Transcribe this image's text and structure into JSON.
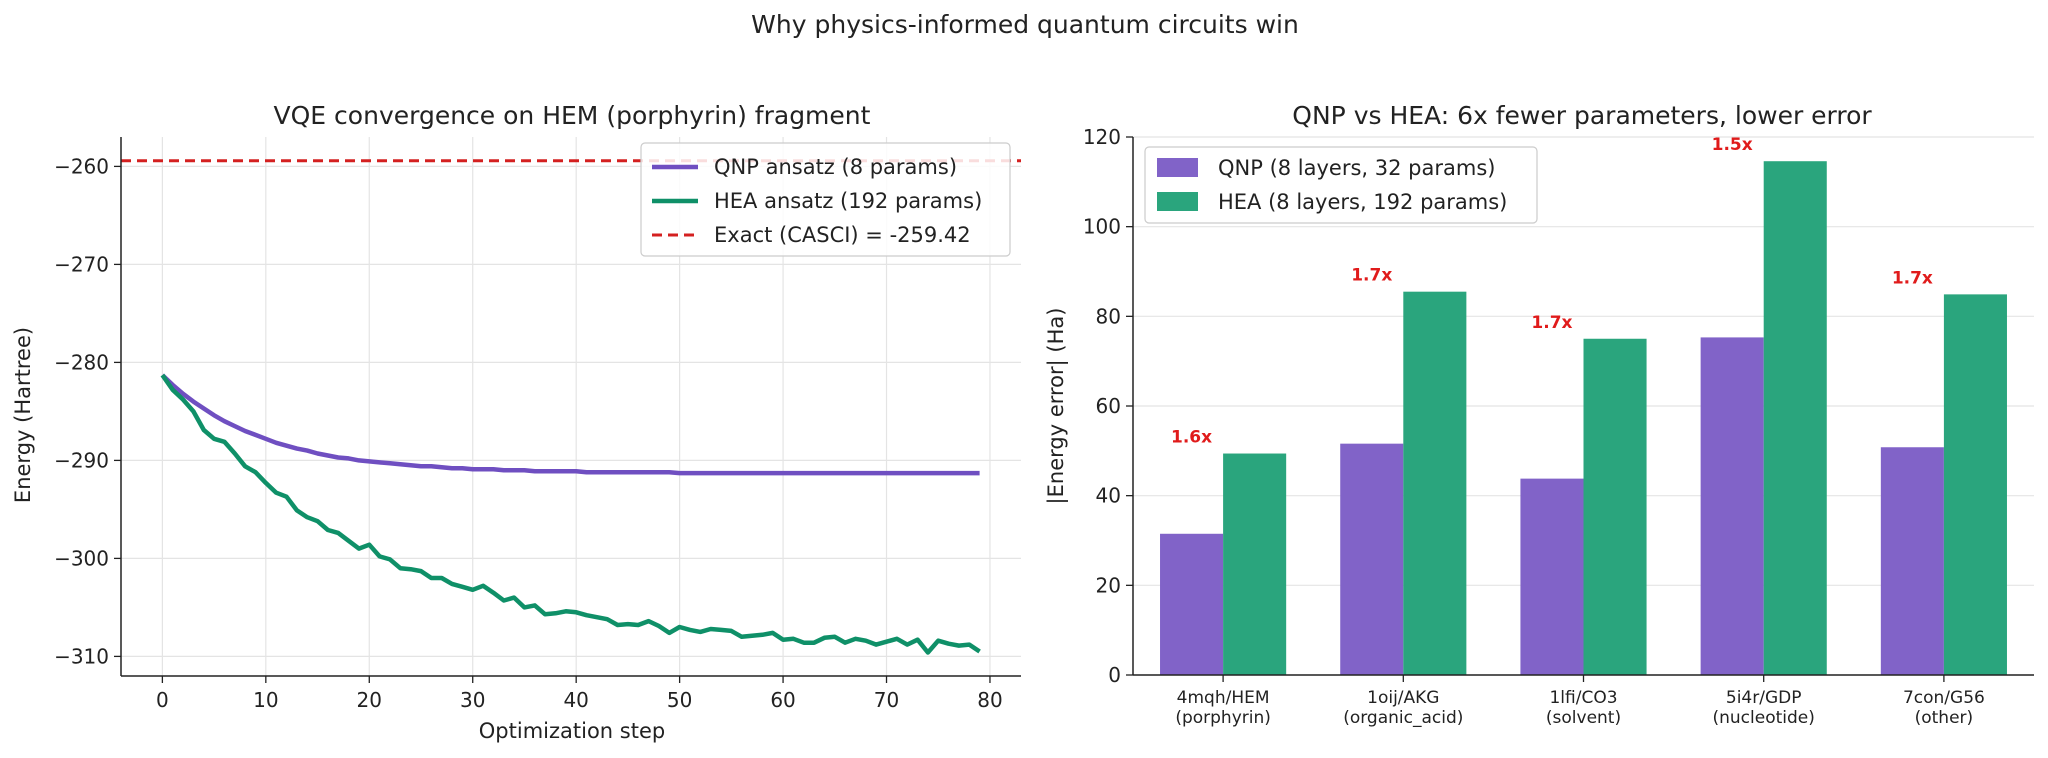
{
  "suptitle": "Why physics-informed quantum circuits win",
  "colors": {
    "qnp": "#6f4fc1",
    "hea": "#0f9068",
    "exact": "#d42020",
    "bar_qnp": "#8163c8",
    "bar_hea": "#2aa57d",
    "ratio": "#e01b1b"
  },
  "chart_data": [
    {
      "type": "line",
      "title": "VQE convergence on HEM (porphyrin) fragment",
      "xlabel": "Optimization step",
      "ylabel": "Energy (Hartree)",
      "xlim": [
        -4,
        83
      ],
      "ylim": [
        -312,
        -257
      ],
      "xticks": [
        0,
        10,
        20,
        30,
        40,
        50,
        60,
        70,
        80
      ],
      "yticks": [
        -310,
        -300,
        -290,
        -280,
        -270,
        -260
      ],
      "tick_labels": {
        "x": [
          "0",
          "10",
          "20",
          "30",
          "40",
          "50",
          "60",
          "70",
          "80"
        ],
        "y": [
          "−310",
          "−300",
          "−290",
          "−280",
          "−270",
          "−260"
        ]
      },
      "grid": true,
      "legend_position": "top-right",
      "series": [
        {
          "name": "QNP ansatz (8 params)",
          "x": [
            0,
            1,
            2,
            3,
            4,
            5,
            6,
            7,
            8,
            9,
            10,
            11,
            12,
            13,
            14,
            15,
            16,
            17,
            18,
            19,
            20,
            21,
            22,
            23,
            24,
            25,
            26,
            27,
            28,
            29,
            30,
            31,
            32,
            33,
            34,
            35,
            36,
            37,
            38,
            39,
            40,
            41,
            42,
            43,
            44,
            45,
            46,
            47,
            48,
            49,
            50,
            51,
            52,
            53,
            54,
            55,
            56,
            57,
            58,
            59,
            60,
            61,
            62,
            63,
            64,
            65,
            66,
            67,
            68,
            69,
            70,
            71,
            72,
            73,
            74,
            75,
            76,
            77,
            78,
            79
          ],
          "y": [
            -281.3,
            -282.3,
            -283.2,
            -284.0,
            -284.7,
            -285.4,
            -286.0,
            -286.5,
            -287.0,
            -287.4,
            -287.8,
            -288.2,
            -288.5,
            -288.8,
            -289.0,
            -289.3,
            -289.5,
            -289.7,
            -289.8,
            -290.0,
            -290.1,
            -290.2,
            -290.3,
            -290.4,
            -290.5,
            -290.6,
            -290.6,
            -290.7,
            -290.8,
            -290.8,
            -290.9,
            -290.9,
            -290.9,
            -291.0,
            -291.0,
            -291.0,
            -291.1,
            -291.1,
            -291.1,
            -291.1,
            -291.1,
            -291.2,
            -291.2,
            -291.2,
            -291.2,
            -291.2,
            -291.2,
            -291.2,
            -291.2,
            -291.2,
            -291.3,
            -291.3,
            -291.3,
            -291.3,
            -291.3,
            -291.3,
            -291.3,
            -291.3,
            -291.3,
            -291.3,
            -291.3,
            -291.3,
            -291.3,
            -291.3,
            -291.3,
            -291.3,
            -291.3,
            -291.3,
            -291.3,
            -291.3,
            -291.3,
            -291.3,
            -291.3,
            -291.3,
            -291.3,
            -291.3,
            -291.3,
            -291.3,
            -291.3,
            -291.3
          ]
        },
        {
          "name": "HEA ansatz (192 params)",
          "x": [
            0,
            1,
            2,
            3,
            4,
            5,
            6,
            7,
            8,
            9,
            10,
            11,
            12,
            13,
            14,
            15,
            16,
            17,
            18,
            19,
            20,
            21,
            22,
            23,
            24,
            25,
            26,
            27,
            28,
            29,
            30,
            31,
            32,
            33,
            34,
            35,
            36,
            37,
            38,
            39,
            40,
            41,
            42,
            43,
            44,
            45,
            46,
            47,
            48,
            49,
            50,
            51,
            52,
            53,
            54,
            55,
            56,
            57,
            58,
            59,
            60,
            61,
            62,
            63,
            64,
            65,
            66,
            67,
            68,
            69,
            70,
            71,
            72,
            73,
            74,
            75,
            76,
            77,
            78,
            79
          ],
          "y": [
            -281.3,
            -282.8,
            -283.8,
            -285.0,
            -286.9,
            -287.8,
            -288.1,
            -289.3,
            -290.6,
            -291.2,
            -292.3,
            -293.3,
            -293.7,
            -295.1,
            -295.8,
            -296.2,
            -297.1,
            -297.4,
            -298.2,
            -299.0,
            -298.6,
            -299.8,
            -300.1,
            -301.0,
            -301.1,
            -301.3,
            -302.0,
            -302.0,
            -302.6,
            -302.9,
            -303.2,
            -302.8,
            -303.5,
            -304.3,
            -304.0,
            -305.0,
            -304.8,
            -305.7,
            -305.6,
            -305.4,
            -305.5,
            -305.8,
            -306.0,
            -306.2,
            -306.8,
            -306.7,
            -306.8,
            -306.4,
            -306.9,
            -307.6,
            -307.0,
            -307.3,
            -307.5,
            -307.2,
            -307.3,
            -307.4,
            -308.0,
            -307.9,
            -307.8,
            -307.6,
            -308.3,
            -308.2,
            -308.6,
            -308.6,
            -308.1,
            -308.0,
            -308.6,
            -308.2,
            -308.4,
            -308.8,
            -308.5,
            -308.2,
            -308.8,
            -308.3,
            -309.6,
            -308.4,
            -308.7,
            -308.9,
            -308.8,
            -309.5
          ]
        }
      ],
      "reference_line": {
        "name": "Exact (CASCI) = -259.42",
        "y": -259.42
      }
    },
    {
      "type": "bar",
      "title": "QNP vs HEA: 6x fewer parameters, lower error",
      "xlabel": "",
      "ylabel": "|Energy error| (Ha)",
      "ylim": [
        0,
        120
      ],
      "yticks": [
        0,
        20,
        40,
        60,
        80,
        100,
        120
      ],
      "ytick_labels": [
        "0",
        "20",
        "40",
        "60",
        "80",
        "100",
        "120"
      ],
      "grid": true,
      "legend_position": "top-left",
      "categories": [
        [
          "4mqh/HEM",
          "(porphyrin)"
        ],
        [
          "1oij/AKG",
          "(organic_acid)"
        ],
        [
          "1lfi/CO3",
          "(solvent)"
        ],
        [
          "5i4r/GDP",
          "(nucleotide)"
        ],
        [
          "7con/G56",
          "(other)"
        ]
      ],
      "series": [
        {
          "name": "QNP (8 layers, 32 params)",
          "values": [
            31.5,
            51.6,
            43.8,
            75.3,
            50.8
          ]
        },
        {
          "name": "HEA (8 layers, 192 params)",
          "values": [
            49.4,
            85.5,
            75.0,
            114.6,
            84.9
          ]
        }
      ],
      "annotations": [
        "1.6x",
        "1.7x",
        "1.7x",
        "1.5x",
        "1.7x"
      ]
    }
  ]
}
